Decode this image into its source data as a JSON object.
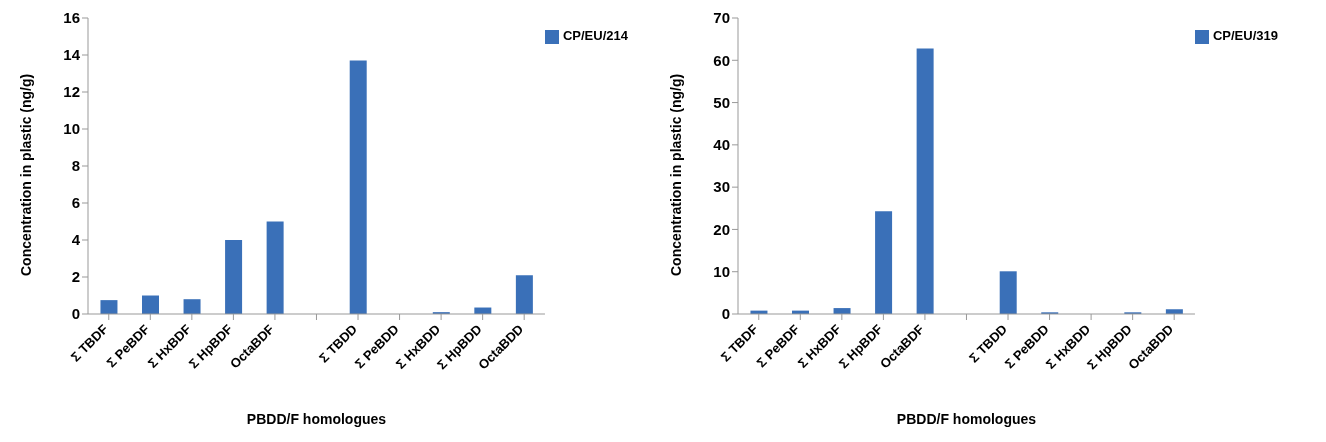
{
  "chart_data": [
    {
      "type": "bar",
      "categories": [
        "Σ TBDF",
        "Σ PeBDF",
        "Σ HxBDF",
        "Σ HpBDF",
        "OctaBDF",
        null,
        "Σ TBDD",
        "Σ PeBDD",
        "Σ HxBDD",
        "Σ HpBDD",
        "OctaBDD"
      ],
      "series": [
        {
          "name": "CP/EU/214",
          "color": "#3a70b8",
          "values": [
            0.75,
            1.0,
            0.8,
            4.0,
            5.0,
            null,
            13.7,
            0,
            0.1,
            0.35,
            2.1
          ]
        }
      ],
      "xlabel": "PBDD/F homologues",
      "ylabel": "Concentration in plastic (ng/g)",
      "ylim": [
        0,
        16
      ],
      "yticks": [
        0,
        2,
        4,
        6,
        8,
        10,
        12,
        14,
        16
      ],
      "grid": false,
      "legend": "top right"
    },
    {
      "type": "bar",
      "categories": [
        "Σ TBDF",
        "Σ PeBDF",
        "Σ HxBDF",
        "Σ HpBDF",
        "OctaBDF",
        null,
        "Σ TBDD",
        "Σ PeBDD",
        "Σ HxBDD",
        "Σ HpBDD",
        "OctaBDD"
      ],
      "series": [
        {
          "name": "CP/EU/319",
          "color": "#3a70b8",
          "values": [
            0.8,
            0.8,
            1.4,
            24.3,
            62.8,
            null,
            10.1,
            0.4,
            0,
            0.4,
            1.1
          ]
        }
      ],
      "xlabel": "PBDD/F homologues",
      "ylabel": "Concentration in plastic (ng/g)",
      "ylim": [
        0,
        70
      ],
      "yticks": [
        0,
        10,
        20,
        30,
        40,
        50,
        60,
        70
      ],
      "grid": false,
      "legend": "top right"
    }
  ]
}
